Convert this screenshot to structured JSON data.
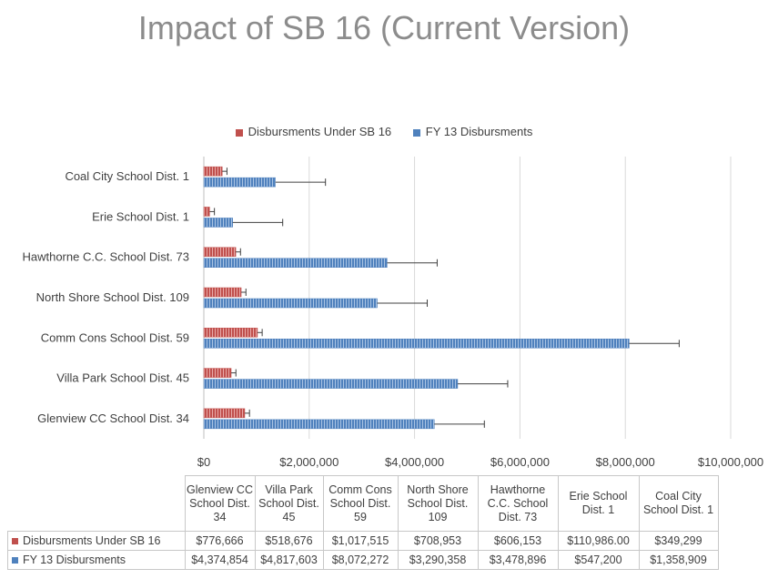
{
  "chart_data": {
    "type": "bar",
    "orientation": "horizontal",
    "title": "Impact of SB 16 (Current Version)",
    "categories": [
      "Glenview CC School Dist. 34",
      "Villa Park School Dist. 45",
      "Comm Cons School Dist. 59",
      "North Shore School Dist. 109",
      "Hawthorne C.C. School Dist. 73",
      "Erie School Dist. 1",
      "Coal City School Dist. 1"
    ],
    "series": [
      {
        "name": "Disbursments Under SB 16",
        "color": "#c0504d",
        "values": [
          776666,
          518676,
          1017515,
          708953,
          606153,
          110986,
          349299
        ],
        "error_plus": [
          90000,
          90000,
          90000,
          90000,
          90000,
          90000,
          90000
        ],
        "table_values": [
          "$776,666",
          "$518,676",
          "$1,017,515",
          "$708,953",
          "$606,153",
          "$110,986.00",
          "$349,299"
        ]
      },
      {
        "name": "FY 13 Disbursments",
        "color": "#4f81bd",
        "values": [
          4374854,
          4817603,
          8072272,
          3290358,
          3478896,
          547200,
          1358909
        ],
        "error_plus": [
          950000,
          950000,
          950000,
          950000,
          950000,
          950000,
          950000
        ],
        "table_values": [
          "$4,374,854",
          "$4,817,603",
          "$8,072,272",
          "$3,290,358",
          "$3,478,896",
          "$547,200",
          "$1,358,909"
        ]
      }
    ],
    "table_headers": [
      [
        "Glenview CC",
        "School Dist.",
        "34"
      ],
      [
        "Villa Park",
        "School Dist.",
        "45"
      ],
      [
        "Comm Cons",
        "School Dist.",
        "59"
      ],
      [
        "North Shore",
        "School Dist.",
        "109"
      ],
      [
        "Hawthorne",
        "C.C. School",
        "Dist. 73"
      ],
      [
        "Erie School",
        "Dist. 1"
      ],
      [
        "Coal City",
        "School Dist. 1"
      ]
    ],
    "xlim": [
      0,
      10000000
    ],
    "x_ticks": [
      0,
      2000000,
      4000000,
      6000000,
      8000000,
      10000000
    ],
    "x_tick_labels": [
      "$0",
      "$2,000,000",
      "$4,000,000",
      "$6,000,000",
      "$8,000,000",
      "$10,000,000"
    ],
    "grid": true,
    "legend_position": "top"
  }
}
